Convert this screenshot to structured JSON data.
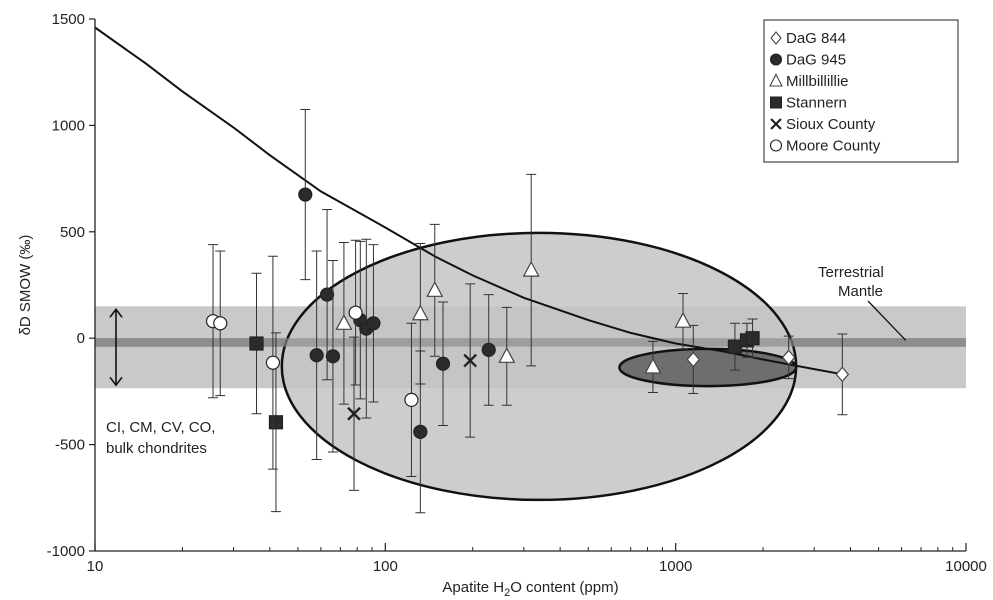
{
  "chart_data": {
    "type": "scatter",
    "title": "",
    "xlabel": {
      "pre": "Apatite H",
      "sub": "2",
      "post": "O content (ppm)"
    },
    "ylabel": "δD SMOW (‰)",
    "x_scale": "log",
    "xlim": [
      10,
      10000
    ],
    "ylim": [
      -1000,
      1500
    ],
    "x_ticks": [
      {
        "value": 10,
        "label": "10"
      },
      {
        "value": 100,
        "label": "100"
      },
      {
        "value": 1000,
        "label": "1000"
      },
      {
        "value": 10000,
        "label": "10000"
      }
    ],
    "y_ticks": [
      {
        "value": -1000,
        "label": "-1000"
      },
      {
        "value": -500,
        "label": "-500"
      },
      {
        "value": 0,
        "label": "0"
      },
      {
        "value": 500,
        "label": "500"
      },
      {
        "value": 1000,
        "label": "1000"
      },
      {
        "value": 1500,
        "label": "1500"
      }
    ],
    "grid": false,
    "legend_position": "top-right",
    "series": [
      {
        "name": "DaG 844",
        "marker": "diamond",
        "fill": "#ffffff",
        "points": [
          {
            "x": 1150,
            "y": -100,
            "err": 160
          },
          {
            "x": 2450,
            "y": -90,
            "err": 100
          },
          {
            "x": 3750,
            "y": -170,
            "err": 190
          }
        ]
      },
      {
        "name": "DaG 945",
        "marker": "circle",
        "fill": "#2b2b2b",
        "points": [
          {
            "x": 53,
            "y": 675,
            "err": 400
          },
          {
            "x": 58,
            "y": -80,
            "err": 490
          },
          {
            "x": 63,
            "y": 205,
            "err": 400
          },
          {
            "x": 66,
            "y": -85,
            "err": 450
          },
          {
            "x": 82,
            "y": 85,
            "err": 370
          },
          {
            "x": 86,
            "y": 45,
            "err": 420
          },
          {
            "x": 91,
            "y": 70,
            "err": 370
          },
          {
            "x": 132,
            "y": -440,
            "err": 380
          },
          {
            "x": 158,
            "y": -120,
            "err": 290
          },
          {
            "x": 227,
            "y": -55,
            "err": 260
          }
        ]
      },
      {
        "name": "Millbillillie",
        "marker": "triangle",
        "fill": "#ffffff",
        "points": [
          {
            "x": 72,
            "y": 70,
            "err": 380
          },
          {
            "x": 132,
            "y": 115,
            "err": 330
          },
          {
            "x": 148,
            "y": 225,
            "err": 310
          },
          {
            "x": 262,
            "y": -85,
            "err": 230
          },
          {
            "x": 318,
            "y": 320,
            "err": 450
          },
          {
            "x": 835,
            "y": -135,
            "err": 120
          },
          {
            "x": 1060,
            "y": 80,
            "err": 130
          }
        ]
      },
      {
        "name": "Stannern",
        "marker": "square",
        "fill": "#2b2b2b",
        "points": [
          {
            "x": 36,
            "y": -25,
            "err": 330
          },
          {
            "x": 42,
            "y": -395,
            "err": 420
          },
          {
            "x": 1600,
            "y": -40,
            "err": 110
          },
          {
            "x": 1760,
            "y": -10,
            "err": 80
          },
          {
            "x": 1840,
            "y": 0,
            "err": 90
          }
        ]
      },
      {
        "name": "Sioux County",
        "marker": "x",
        "fill": "#2b2b2b",
        "points": [
          {
            "x": 78,
            "y": -355,
            "err": 360
          },
          {
            "x": 196,
            "y": -105,
            "err": 360
          }
        ]
      },
      {
        "name": "Moore County",
        "marker": "circle",
        "fill": "#ffffff",
        "points": [
          {
            "x": 25.5,
            "y": 80,
            "err": 360
          },
          {
            "x": 27,
            "y": 70,
            "err": 340
          },
          {
            "x": 41,
            "y": -115,
            "err": 500
          },
          {
            "x": 79,
            "y": 120,
            "err": 340
          },
          {
            "x": 123,
            "y": -290,
            "err": 360
          }
        ]
      }
    ],
    "bands": [
      {
        "kind": "bulk-chondrite-range",
        "y_low": -235,
        "y_high": 150,
        "color": "#c9c9c9"
      },
      {
        "kind": "terrestrial-mantle",
        "y_low": -40,
        "y_high": 0,
        "color": "#8e8e8e"
      }
    ],
    "ellipses": [
      {
        "x_center": 380,
        "y_center": -140,
        "x_min": 44,
        "x_max": 2600,
        "y_min": -760,
        "y_max": 495,
        "color": "#c4c4c4"
      },
      {
        "x_center": 1430,
        "y_center": -140,
        "x_min": 640,
        "x_max": 2600,
        "y_min": -225,
        "y_max": -50,
        "color": "#6e6e6e"
      }
    ],
    "curve": [
      [
        10,
        1460
      ],
      [
        15,
        1290
      ],
      [
        20,
        1160
      ],
      [
        30,
        990
      ],
      [
        40,
        860
      ],
      [
        60,
        690
      ],
      [
        100,
        520
      ],
      [
        150,
        380
      ],
      [
        200,
        295
      ],
      [
        300,
        190
      ],
      [
        500,
        85
      ],
      [
        700,
        25
      ],
      [
        1000,
        -25
      ],
      [
        1500,
        -65
      ],
      [
        2000,
        -100
      ],
      [
        2500,
        -125
      ],
      [
        3000,
        -145
      ],
      [
        3600,
        -165
      ]
    ],
    "annotations": {
      "terrestrial": [
        "Terrestrial",
        "Mantle"
      ],
      "chondrites": [
        "CI, CM, CV, CO,",
        "bulk chondrites"
      ],
      "terrestrial_x": 6200,
      "terrestrial_y": -10
    }
  }
}
